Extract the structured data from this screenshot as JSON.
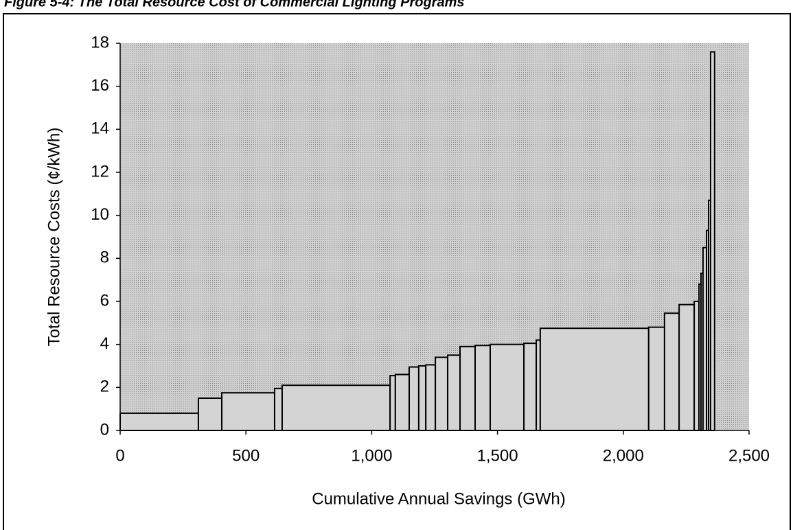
{
  "chart_data": {
    "type": "histogram",
    "title": "Figure 5-4: The Total Resource Cost of Commercial Lighting Programs",
    "xlabel": "Cumulative Annual Savings (GWh)",
    "ylabel": "Total Resource Costs (¢/kWh)",
    "bins": [
      0,
      311,
      404,
      614,
      644,
      1073,
      1094,
      1149,
      1187,
      1215,
      1253,
      1302,
      1351,
      1411,
      1471,
      1605,
      1654,
      1670,
      2101,
      2164,
      2222,
      2282,
      2301,
      2309,
      2317,
      2331,
      2339,
      2347,
      2363
    ],
    "values": [
      0.8,
      1.5,
      1.75,
      1.95,
      2.1,
      2.55,
      2.6,
      2.95,
      3.0,
      3.05,
      3.4,
      3.5,
      3.9,
      3.95,
      4.0,
      4.05,
      4.2,
      4.75,
      4.8,
      5.45,
      5.85,
      6.0,
      6.8,
      7.3,
      8.5,
      9.3,
      10.7,
      17.6
    ],
    "color": "#d4d4d4",
    "xlim": [
      0,
      2500
    ],
    "xticks": [
      0,
      500,
      {
        "value": 1000,
        "label": "1,000"
      },
      {
        "value": 1500,
        "label": "1,500"
      },
      {
        "value": 2000,
        "label": "2,000"
      },
      {
        "value": 2500,
        "label": "2,500"
      }
    ],
    "ylim": [
      0,
      18
    ],
    "yticks": [
      0,
      2,
      4,
      6,
      8,
      10,
      12,
      14,
      16,
      18
    ]
  }
}
